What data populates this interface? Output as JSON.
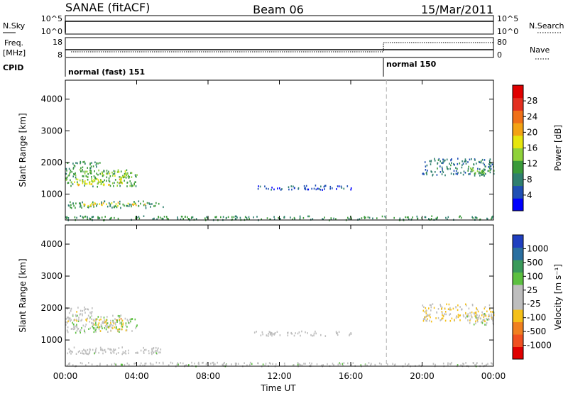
{
  "header": {
    "radar": "SANAE (fitACF)",
    "beam": "Beam 06",
    "date": "15/Mar/2011"
  },
  "top_panels": {
    "nsky_label": "N.Sky",
    "nsky_ticks": [
      "10^5",
      "10^0"
    ],
    "nsearch_label": "N.Search",
    "nsearch_ticks": [
      "10^5",
      "10^0"
    ],
    "freq_label_1": "Freq.",
    "freq_label_2": "[MHz]",
    "freq_ticks": [
      "18",
      "8"
    ],
    "nave_label": "Nave",
    "nave_ticks": [
      "80",
      "0"
    ],
    "cpid_label": "CPID",
    "cpid_segments": [
      {
        "text": "normal (fast) 151",
        "start": "00:00",
        "end": "18:00"
      },
      {
        "text": "normal 150",
        "start": "18:00",
        "end": "00:00"
      }
    ]
  },
  "colors": {
    "power_scale": [
      "#0000ff",
      "#1f4fb4",
      "#2f7f6f",
      "#3a9a3a",
      "#8fd23a",
      "#e6e60e",
      "#f3a314",
      "#f07018",
      "#e32f20",
      "#e00000"
    ],
    "velocity_scale": [
      "#e00000",
      "#f05020",
      "#f08020",
      "#f5c018",
      "#bebebe",
      "#bebebe",
      "#5cc040",
      "#3a9a5a",
      "#2a6fa0",
      "#1f3fc0"
    ]
  },
  "chart_data": [
    {
      "type": "heatmap",
      "name": "power",
      "title": "",
      "xlabel": "",
      "ylabel": "Slant Range [km]",
      "x_ticks": [
        "00:00",
        "04:00",
        "08:00",
        "12:00",
        "16:00",
        "20:00",
        "00:00"
      ],
      "xlim": [
        0,
        24
      ],
      "ylim": [
        180,
        4600
      ],
      "y_ticks": [
        1000,
        2000,
        3000,
        4000
      ],
      "colorbar_label": "Power [dB]",
      "colorbar_ticks": [
        "4",
        "8",
        "12",
        "16",
        "20",
        "24",
        "28"
      ],
      "clim": [
        0,
        30
      ],
      "regions": [
        {
          "t0": 0.0,
          "t1": 4.0,
          "r0": 1250,
          "r1": 1800,
          "value": 11
        },
        {
          "t0": 0.0,
          "t1": 2.0,
          "r0": 1800,
          "r1": 2050,
          "value": 9
        },
        {
          "t0": 0.3,
          "t1": 3.2,
          "r0": 1300,
          "r1": 1500,
          "value": 17
        },
        {
          "t0": 2.0,
          "t1": 3.5,
          "r0": 1550,
          "r1": 1750,
          "value": 14
        },
        {
          "t0": 0.0,
          "t1": 5.5,
          "r0": 580,
          "r1": 800,
          "value": 9
        },
        {
          "t0": 1.0,
          "t1": 4.5,
          "r0": 650,
          "r1": 760,
          "value": 17
        },
        {
          "t0": 0.0,
          "t1": 24.0,
          "r0": 200,
          "r1": 330,
          "value": 9
        },
        {
          "t0": 10.5,
          "t1": 16.0,
          "r0": 1150,
          "r1": 1300,
          "value": 5
        },
        {
          "t0": 20.0,
          "t1": 24.0,
          "r0": 1600,
          "r1": 2150,
          "value": 7
        },
        {
          "t0": 22.5,
          "t1": 24.0,
          "r0": 1650,
          "r1": 1850,
          "value": 11
        }
      ]
    },
    {
      "type": "heatmap",
      "name": "velocity",
      "title": "",
      "xlabel": "Time UT",
      "ylabel": "Slant Range [km]",
      "x_ticks": [
        "00:00",
        "04:00",
        "08:00",
        "12:00",
        "16:00",
        "20:00",
        "00:00"
      ],
      "xlim": [
        0,
        24
      ],
      "ylim": [
        180,
        4600
      ],
      "y_ticks": [
        1000,
        2000,
        3000,
        4000
      ],
      "colorbar_label": "Velocity [m s⁻¹]",
      "colorbar_ticks": [
        "-1000",
        "-500",
        "-100",
        "-25",
        "25",
        "100",
        "500",
        "1000"
      ],
      "clim": [
        -1200,
        1200
      ],
      "regions": [
        {
          "t0": 0.0,
          "t1": 4.0,
          "r0": 1250,
          "r1": 1800,
          "value": 200
        },
        {
          "t0": 0.0,
          "t1": 1.5,
          "r0": 1600,
          "r1": 2050,
          "value": -150
        },
        {
          "t0": 1.5,
          "t1": 3.5,
          "r0": 1300,
          "r1": 1700,
          "value": -300
        },
        {
          "t0": 0.0,
          "t1": 5.5,
          "r0": 580,
          "r1": 800,
          "value": 0
        },
        {
          "t0": 0.0,
          "t1": 5.5,
          "r0": 600,
          "r1": 660,
          "value": 60
        },
        {
          "t0": 0.0,
          "t1": 24.0,
          "r0": 200,
          "r1": 320,
          "value": 60
        },
        {
          "t0": 10.5,
          "t1": 16.0,
          "r0": 1150,
          "r1": 1300,
          "value": 0
        },
        {
          "t0": 20.0,
          "t1": 24.0,
          "r0": 1600,
          "r1": 2150,
          "value": -200
        },
        {
          "t0": 22.5,
          "t1": 24.0,
          "r0": 1500,
          "r1": 1900,
          "value": 150
        }
      ]
    }
  ]
}
